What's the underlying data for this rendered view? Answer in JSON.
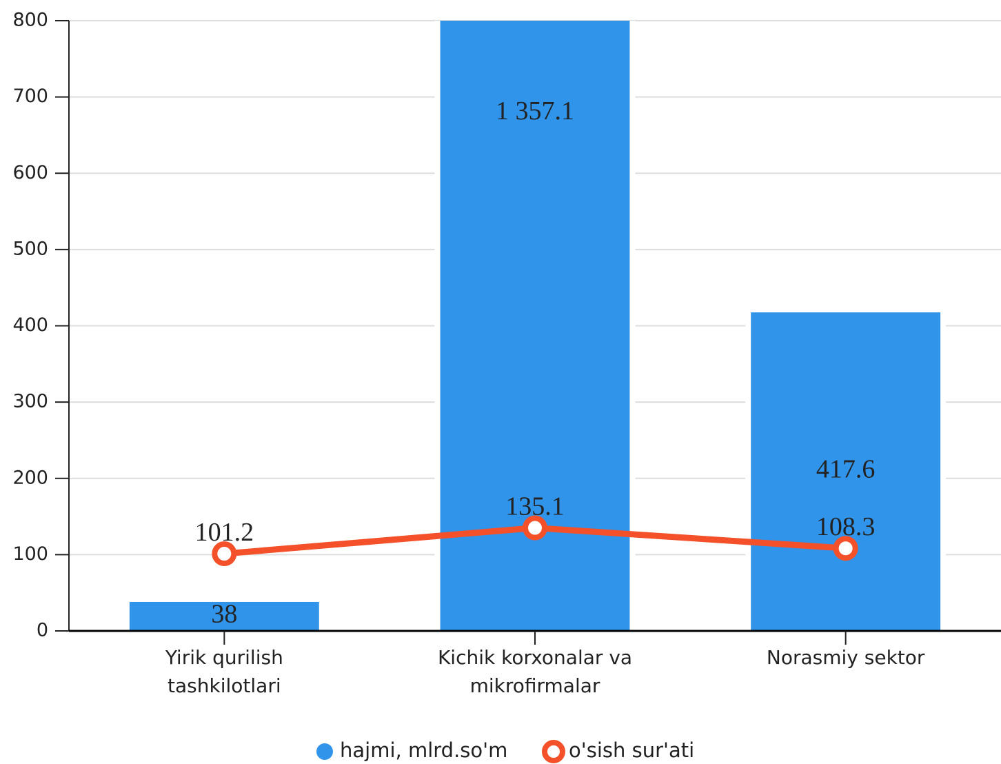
{
  "chart_data": {
    "type": "bar",
    "categories": [
      "Yirik qurilish tashkilotlari",
      "Kichik korxonalar va mikrofirmalar",
      "Norasmiy sektor"
    ],
    "series": [
      {
        "name": "hajmi, mlrd.so'm",
        "type": "bar",
        "color": "#3094ea",
        "values": [
          38,
          1357.1,
          417.6
        ],
        "value_labels": [
          "38",
          "1 357.1",
          "417.6"
        ]
      },
      {
        "name": "o'sish sur'ati",
        "type": "line",
        "color": "#f4502a",
        "values": [
          101.2,
          135.1,
          108.3
        ]
      }
    ],
    "ylim": [
      0,
      800
    ],
    "yticks": [
      0,
      100,
      200,
      300,
      400,
      500,
      600,
      700,
      800
    ],
    "grid": true,
    "legend": "bottom"
  }
}
